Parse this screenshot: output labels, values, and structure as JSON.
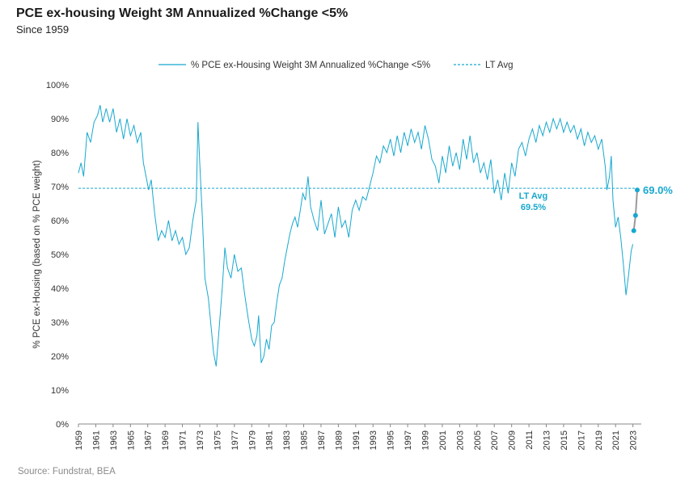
{
  "header": {
    "title": "PCE ex-housing Weight 3M Annualized %Change <5%",
    "subtitle": "Since 1959"
  },
  "footer": {
    "source": "Source: Fundstrat, BEA"
  },
  "colors": {
    "series": "#18a8cf",
    "avg_line": "#18a8cf",
    "axis": "#888888",
    "highlight_marker": "#18a8cf",
    "connector": "#999999"
  },
  "chart_data": {
    "type": "line",
    "title": "PCE ex-housing Weight 3M Annualized %Change <5%",
    "subtitle": "Since 1959",
    "ylabel": "% PCE ex-Housing (based on % PCE weight)",
    "xlabel": "",
    "ylim": [
      0,
      100
    ],
    "yticks": [
      "0%",
      "10%",
      "20%",
      "30%",
      "40%",
      "50%",
      "60%",
      "70%",
      "80%",
      "90%",
      "100%"
    ],
    "xticks": [
      "1959",
      "1961",
      "1963",
      "1965",
      "1967",
      "1969",
      "1971",
      "1973",
      "1975",
      "1977",
      "1979",
      "1981",
      "1983",
      "1985",
      "1987",
      "1989",
      "1991",
      "1993",
      "1995",
      "1997",
      "1999",
      "2001",
      "2003",
      "2005",
      "2007",
      "2009",
      "2011",
      "2013",
      "2015",
      "2017",
      "2019",
      "2021",
      "2023"
    ],
    "x_range": [
      1959.0,
      2023.5
    ],
    "legend_position": "top-center",
    "grid": false,
    "series": [
      {
        "name": "% PCE ex-Housing Weight 3M Annualized %Change <5%",
        "style": "solid",
        "points": [
          [
            1959.0,
            74
          ],
          [
            1959.3,
            77
          ],
          [
            1959.6,
            73
          ],
          [
            1960.0,
            86
          ],
          [
            1960.4,
            83
          ],
          [
            1960.8,
            89
          ],
          [
            1961.2,
            91
          ],
          [
            1961.5,
            94
          ],
          [
            1961.8,
            89
          ],
          [
            1962.2,
            93
          ],
          [
            1962.6,
            89
          ],
          [
            1963.0,
            93
          ],
          [
            1963.4,
            86
          ],
          [
            1963.8,
            90
          ],
          [
            1964.2,
            84
          ],
          [
            1964.6,
            90
          ],
          [
            1965.0,
            85
          ],
          [
            1965.4,
            88
          ],
          [
            1965.8,
            83
          ],
          [
            1966.2,
            86
          ],
          [
            1966.5,
            77
          ],
          [
            1966.8,
            73
          ],
          [
            1967.1,
            69
          ],
          [
            1967.4,
            72
          ],
          [
            1967.8,
            62
          ],
          [
            1968.2,
            54
          ],
          [
            1968.6,
            57
          ],
          [
            1969.0,
            55
          ],
          [
            1969.4,
            60
          ],
          [
            1969.8,
            54
          ],
          [
            1970.2,
            57
          ],
          [
            1970.6,
            53
          ],
          [
            1971.0,
            55
          ],
          [
            1971.4,
            50
          ],
          [
            1971.8,
            52
          ],
          [
            1972.2,
            60
          ],
          [
            1972.6,
            66
          ],
          [
            1972.8,
            89
          ],
          [
            1973.0,
            77
          ],
          [
            1973.3,
            61
          ],
          [
            1973.6,
            43
          ],
          [
            1974.0,
            37
          ],
          [
            1974.3,
            29
          ],
          [
            1974.6,
            21
          ],
          [
            1974.9,
            17
          ],
          [
            1975.2,
            27
          ],
          [
            1975.6,
            40
          ],
          [
            1975.9,
            52
          ],
          [
            1976.2,
            46
          ],
          [
            1976.6,
            43
          ],
          [
            1977.0,
            50
          ],
          [
            1977.4,
            45
          ],
          [
            1977.8,
            46
          ],
          [
            1978.2,
            38
          ],
          [
            1978.6,
            31
          ],
          [
            1979.0,
            25
          ],
          [
            1979.3,
            23
          ],
          [
            1979.6,
            26
          ],
          [
            1979.8,
            32
          ],
          [
            1980.1,
            18
          ],
          [
            1980.4,
            20
          ],
          [
            1980.7,
            25
          ],
          [
            1981.0,
            22
          ],
          [
            1981.3,
            29
          ],
          [
            1981.6,
            30
          ],
          [
            1981.9,
            36
          ],
          [
            1982.2,
            41
          ],
          [
            1982.5,
            43
          ],
          [
            1982.8,
            48
          ],
          [
            1983.1,
            52
          ],
          [
            1983.4,
            56
          ],
          [
            1983.7,
            59
          ],
          [
            1984.0,
            61
          ],
          [
            1984.3,
            58
          ],
          [
            1984.6,
            63
          ],
          [
            1984.9,
            68
          ],
          [
            1985.2,
            66
          ],
          [
            1985.5,
            73
          ],
          [
            1985.8,
            64
          ],
          [
            1986.2,
            60
          ],
          [
            1986.6,
            57
          ],
          [
            1987.0,
            66
          ],
          [
            1987.4,
            56
          ],
          [
            1987.8,
            59
          ],
          [
            1988.2,
            62
          ],
          [
            1988.6,
            55
          ],
          [
            1989.0,
            64
          ],
          [
            1989.4,
            58
          ],
          [
            1989.8,
            60
          ],
          [
            1990.2,
            55
          ],
          [
            1990.6,
            63
          ],
          [
            1991.0,
            66
          ],
          [
            1991.4,
            63
          ],
          [
            1991.8,
            67
          ],
          [
            1992.2,
            66
          ],
          [
            1992.6,
            70
          ],
          [
            1993.0,
            74
          ],
          [
            1993.4,
            79
          ],
          [
            1993.8,
            77
          ],
          [
            1994.2,
            82
          ],
          [
            1994.6,
            80
          ],
          [
            1995.0,
            84
          ],
          [
            1995.4,
            79
          ],
          [
            1995.8,
            85
          ],
          [
            1996.2,
            80
          ],
          [
            1996.6,
            86
          ],
          [
            1997.0,
            82
          ],
          [
            1997.4,
            87
          ],
          [
            1997.8,
            83
          ],
          [
            1998.2,
            86
          ],
          [
            1998.6,
            81
          ],
          [
            1999.0,
            88
          ],
          [
            1999.4,
            84
          ],
          [
            1999.8,
            78
          ],
          [
            2000.2,
            76
          ],
          [
            2000.6,
            71
          ],
          [
            2001.0,
            79
          ],
          [
            2001.4,
            74
          ],
          [
            2001.8,
            82
          ],
          [
            2002.2,
            76
          ],
          [
            2002.6,
            80
          ],
          [
            2003.0,
            75
          ],
          [
            2003.4,
            84
          ],
          [
            2003.8,
            78
          ],
          [
            2004.2,
            85
          ],
          [
            2004.6,
            77
          ],
          [
            2005.0,
            80
          ],
          [
            2005.4,
            74
          ],
          [
            2005.8,
            77
          ],
          [
            2006.2,
            72
          ],
          [
            2006.6,
            78
          ],
          [
            2007.0,
            68
          ],
          [
            2007.4,
            72
          ],
          [
            2007.8,
            66
          ],
          [
            2008.2,
            74
          ],
          [
            2008.6,
            68
          ],
          [
            2009.0,
            77
          ],
          [
            2009.4,
            73
          ],
          [
            2009.8,
            81
          ],
          [
            2010.2,
            83
          ],
          [
            2010.6,
            79
          ],
          [
            2011.0,
            84
          ],
          [
            2011.4,
            87
          ],
          [
            2011.8,
            83
          ],
          [
            2012.2,
            88
          ],
          [
            2012.6,
            85
          ],
          [
            2013.0,
            89
          ],
          [
            2013.4,
            86
          ],
          [
            2013.8,
            90
          ],
          [
            2014.2,
            87
          ],
          [
            2014.6,
            90
          ],
          [
            2015.0,
            86
          ],
          [
            2015.4,
            89
          ],
          [
            2015.8,
            86
          ],
          [
            2016.2,
            88
          ],
          [
            2016.6,
            84
          ],
          [
            2017.0,
            87
          ],
          [
            2017.4,
            82
          ],
          [
            2017.8,
            86
          ],
          [
            2018.2,
            83
          ],
          [
            2018.6,
            85
          ],
          [
            2019.0,
            81
          ],
          [
            2019.4,
            84
          ],
          [
            2019.8,
            76
          ],
          [
            2020.0,
            69
          ],
          [
            2020.3,
            73
          ],
          [
            2020.5,
            79
          ],
          [
            2020.7,
            66
          ],
          [
            2021.0,
            58
          ],
          [
            2021.3,
            61
          ],
          [
            2021.6,
            55
          ],
          [
            2021.9,
            47
          ],
          [
            2022.2,
            38
          ],
          [
            2022.5,
            44
          ],
          [
            2022.8,
            51
          ],
          [
            2023.0,
            53
          ]
        ]
      },
      {
        "name": "LT Avg",
        "style": "dashed",
        "value": 69.5
      }
    ],
    "highlight_points": [
      {
        "x": 2023.1,
        "y": 57
      },
      {
        "x": 2023.3,
        "y": 61.5
      },
      {
        "x": 2023.5,
        "y": 69.0
      }
    ],
    "annotations": [
      {
        "text": "LT Avg",
        "value_text": "69.5%",
        "x": 2011.5,
        "y": 66
      },
      {
        "text": "69.0%",
        "x": 2023.5,
        "y": 69.0
      }
    ]
  }
}
